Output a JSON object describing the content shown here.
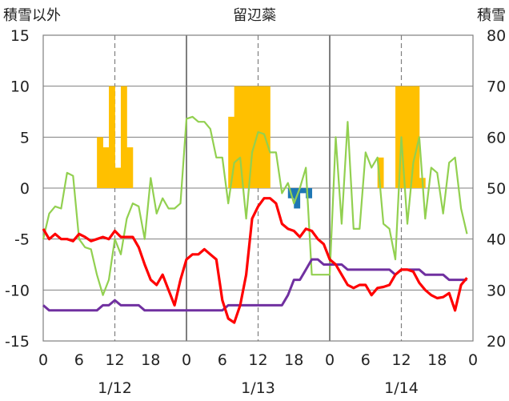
{
  "chart_data": {
    "type": "bar+line",
    "title": "留辺蘂",
    "left_axis_label": "積雪以外",
    "right_axis_label": "積雪",
    "left_ylim": [
      -15,
      15
    ],
    "left_yticks": [
      "15",
      "10",
      "5",
      "0",
      "-5",
      "-10",
      "-15"
    ],
    "right_ylim": [
      20,
      80
    ],
    "right_yticks": [
      "80",
      "70",
      "60",
      "50",
      "40",
      "30",
      "20"
    ],
    "x_hours_range": [
      0,
      72
    ],
    "x_tick_labels": [
      "0",
      "6",
      "12",
      "18",
      "0",
      "6",
      "12",
      "18",
      "0",
      "6",
      "12",
      "18",
      "0"
    ],
    "date_labels": [
      "1/12",
      "1/13",
      "1/14"
    ],
    "colors": {
      "snow_bar": "#ffc000",
      "precip_bar": "#1f77b4",
      "temp_line": "#ff0000",
      "green_line": "#92d050",
      "purple_line": "#7030a0",
      "grid_solid": "#7f7f7f",
      "grid_dashed": "#7f7f7f"
    },
    "snow_bars": [
      {
        "x": 9.5,
        "value": 5
      },
      {
        "x": 10.5,
        "value": 4
      },
      {
        "x": 11.5,
        "value": 10
      },
      {
        "x": 12.5,
        "value": 2
      },
      {
        "x": 13.5,
        "value": 10
      },
      {
        "x": 14.5,
        "value": 4
      },
      {
        "x": 31.5,
        "value": 7
      },
      {
        "x": 32.5,
        "value": 10
      },
      {
        "x": 33.5,
        "value": 10
      },
      {
        "x": 34.5,
        "value": 10
      },
      {
        "x": 35.5,
        "value": 10
      },
      {
        "x": 36.5,
        "value": 10
      },
      {
        "x": 37.5,
        "value": 10
      },
      {
        "x": 56.5,
        "value": 3
      },
      {
        "x": 59.5,
        "value": 10
      },
      {
        "x": 60.5,
        "value": 10
      },
      {
        "x": 61.5,
        "value": 10
      },
      {
        "x": 62.5,
        "value": 10
      },
      {
        "x": 63.5,
        "value": 1
      }
    ],
    "precip_bars": [
      {
        "x": 41.5,
        "value": -1
      },
      {
        "x": 42.5,
        "value": -2
      },
      {
        "x": 43.5,
        "value": -0.5
      },
      {
        "x": 44.5,
        "value": -1
      }
    ],
    "temp_line": {
      "x": [
        0,
        1,
        2,
        3,
        4,
        5,
        6,
        7,
        8,
        9,
        10,
        11,
        12,
        13,
        14,
        15,
        16,
        17,
        18,
        19,
        20,
        21,
        22,
        23,
        24,
        25,
        26,
        27,
        28,
        29,
        30,
        31,
        32,
        33,
        34,
        35,
        36,
        37,
        38,
        39,
        40,
        41,
        42,
        43,
        44,
        45,
        46,
        47,
        48,
        49,
        50,
        51,
        52,
        53,
        54,
        55,
        56,
        57,
        58,
        59,
        60,
        61,
        62,
        63,
        64,
        65,
        66,
        67,
        68,
        69,
        70,
        71
      ],
      "values": [
        -4,
        -5,
        -4.5,
        -5,
        -5,
        -5.2,
        -4.5,
        -4.8,
        -5.2,
        -5,
        -4.8,
        -5,
        -4.2,
        -4.8,
        -4.8,
        -4.8,
        -5.8,
        -7.5,
        -9,
        -9.5,
        -8.5,
        -10,
        -11.5,
        -9,
        -7,
        -6.5,
        -6.5,
        -6,
        -6.5,
        -7,
        -11,
        -12.8,
        -13.2,
        -11.5,
        -8.5,
        -3,
        -1.8,
        -1,
        -1,
        -1.5,
        -3.5,
        -4,
        -4.2,
        -4.8,
        -4,
        -4.2,
        -5,
        -5.5,
        -7,
        -7.5,
        -8.5,
        -9.5,
        -9.8,
        -9.5,
        -9.5,
        -10.5,
        -9.8,
        -9.7,
        -9.5,
        -8.5,
        -8,
        -8,
        -8.2,
        -9.3,
        -10,
        -10.5,
        -10.8,
        -10.7,
        -10.3,
        -12,
        -9.5,
        -8.8
      ]
    },
    "green_line": {
      "x": [
        0,
        1,
        2,
        3,
        4,
        5,
        6,
        7,
        8,
        9,
        10,
        11,
        12,
        13,
        14,
        15,
        16,
        17,
        18,
        19,
        20,
        21,
        22,
        23,
        24,
        25,
        26,
        27,
        28,
        29,
        30,
        31,
        32,
        33,
        34,
        35,
        36,
        37,
        38,
        39,
        40,
        41,
        42,
        43,
        44,
        45,
        46,
        47,
        48,
        49,
        50,
        51,
        52,
        53,
        54,
        55,
        56,
        57,
        58,
        59,
        60,
        61,
        62,
        63,
        64,
        65,
        66,
        67,
        68,
        69,
        70,
        71
      ],
      "values": [
        -5,
        -2.5,
        -1.8,
        -2,
        1.5,
        1.2,
        -5,
        -5.8,
        -6,
        -8.5,
        -10.5,
        -9,
        -5,
        -6.5,
        -3,
        -1.5,
        -1.8,
        -5,
        1,
        -2.5,
        -1,
        -2,
        -2,
        -1.5,
        6.8,
        7,
        6.5,
        6.5,
        5.8,
        3,
        3,
        -1.5,
        2.5,
        3,
        -3,
        3.5,
        5.5,
        5.3,
        3.5,
        3.5,
        -0.5,
        0.5,
        -1.5,
        0,
        2,
        -8.5,
        -8.5,
        -8.5,
        -8.5,
        5,
        -3.5,
        6.5,
        -4,
        -4,
        3.5,
        2,
        3,
        -3.5,
        -4,
        -7,
        5,
        -3.5,
        2.5,
        5,
        -3,
        2,
        1.5,
        -2.5,
        2.5,
        3,
        -2,
        -4.5
      ]
    },
    "purple_line": {
      "x": [
        0,
        1,
        6,
        8,
        9,
        10,
        11,
        12,
        13,
        14,
        15,
        16,
        17,
        18,
        30,
        31,
        32,
        33,
        40,
        41,
        42,
        43,
        44,
        45,
        46,
        47,
        48,
        49,
        50,
        51,
        52,
        53,
        54,
        55,
        56,
        57,
        58,
        59,
        60,
        61,
        62,
        63,
        64,
        65,
        66,
        67,
        68,
        69,
        70,
        71
      ],
      "values": [
        -11.5,
        -12,
        -12,
        -12,
        -12,
        -11.5,
        -11.5,
        -11,
        -11.5,
        -11.5,
        -11.5,
        -11.5,
        -12,
        -12,
        -12,
        -11.5,
        -11.5,
        -11.5,
        -11.5,
        -10.5,
        -9,
        -9,
        -8,
        -7,
        -7,
        -7.5,
        -7.5,
        -7.5,
        -7.5,
        -8,
        -8,
        -8,
        -8,
        -8,
        -8,
        -8,
        -8,
        -8.5,
        -8,
        -8,
        -8,
        -8,
        -8.5,
        -8.5,
        -8.5,
        -8.5,
        -9,
        -9,
        -9,
        -9
      ]
    }
  }
}
